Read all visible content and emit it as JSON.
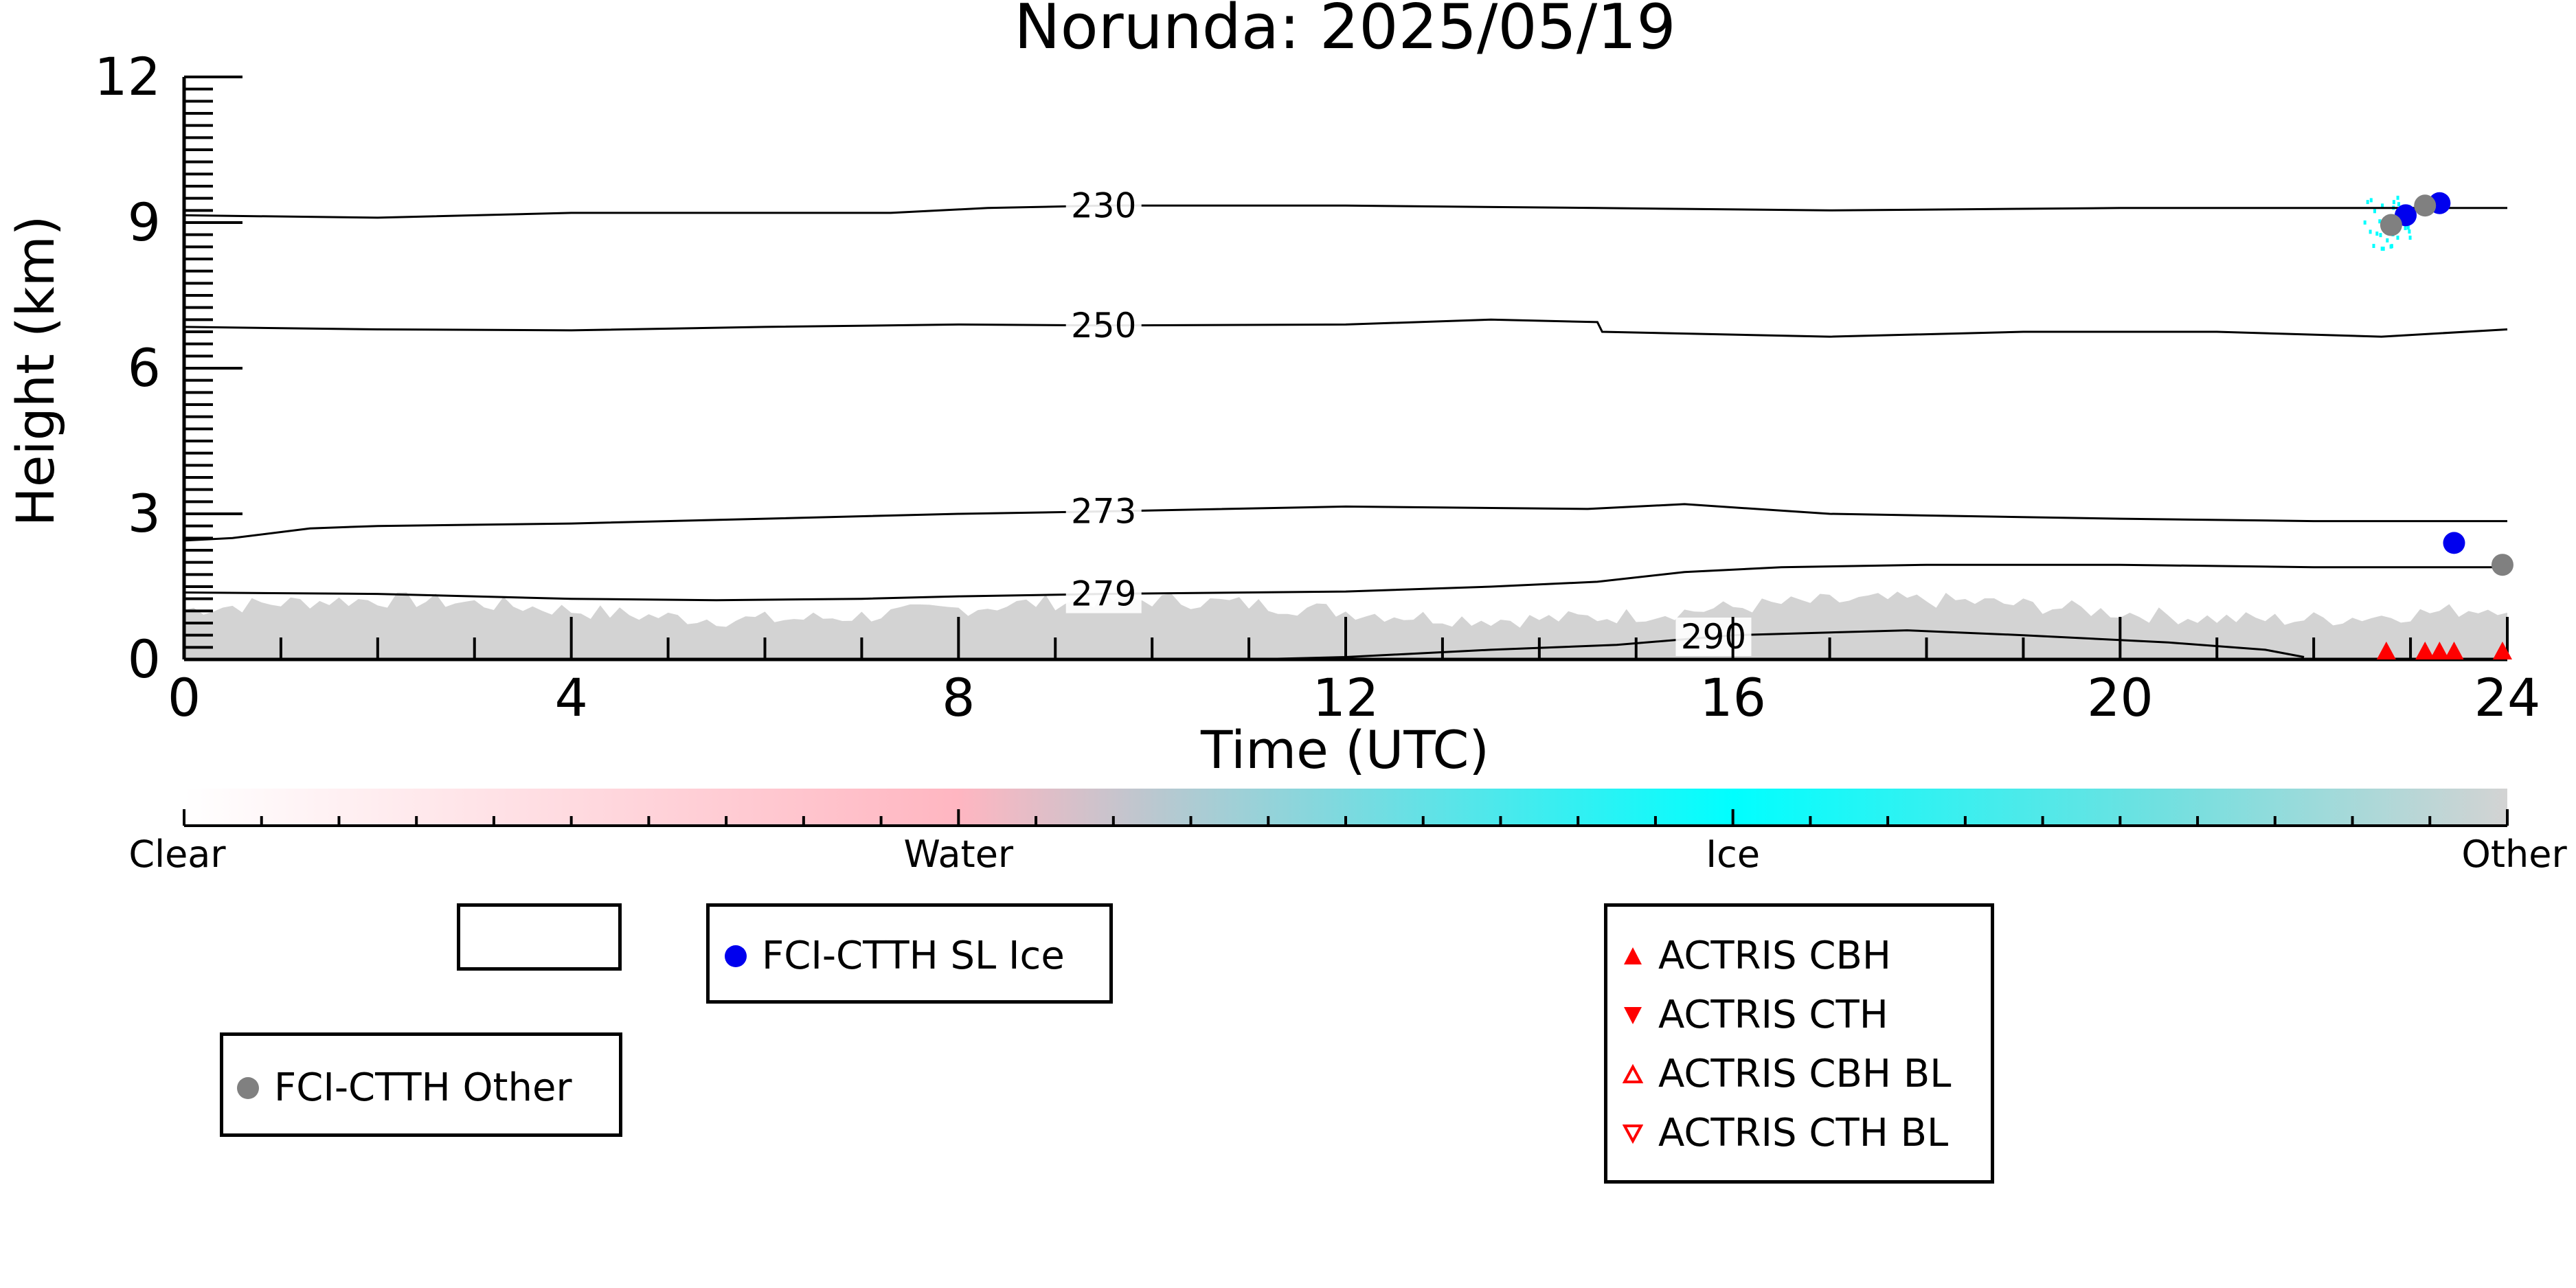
{
  "chart_data": {
    "type": "line",
    "title": "Norunda: 2025/05/19",
    "xlabel": "Time (UTC)",
    "ylabel": "Height (km)",
    "xlim": [
      0,
      24
    ],
    "ylim": [
      0,
      12
    ],
    "xticks": [
      0,
      4,
      8,
      12,
      16,
      20,
      24
    ],
    "yticks": [
      0,
      3,
      6,
      9,
      12
    ],
    "isotherms": [
      {
        "label": "230",
        "label_at": 9.5,
        "points": [
          [
            0,
            9.15
          ],
          [
            2,
            9.1
          ],
          [
            4,
            9.2
          ],
          [
            6,
            9.2
          ],
          [
            7.3,
            9.2
          ],
          [
            8.3,
            9.3
          ],
          [
            9.5,
            9.35
          ],
          [
            12,
            9.35
          ],
          [
            14.6,
            9.3
          ],
          [
            17,
            9.25
          ],
          [
            20,
            9.3
          ],
          [
            22,
            9.3
          ],
          [
            24,
            9.3
          ]
        ]
      },
      {
        "label": "250",
        "label_at": 9.5,
        "points": [
          [
            0,
            6.85
          ],
          [
            2,
            6.8
          ],
          [
            4,
            6.78
          ],
          [
            6,
            6.85
          ],
          [
            8,
            6.9
          ],
          [
            9.5,
            6.88
          ],
          [
            12,
            6.9
          ],
          [
            13.5,
            7.0
          ],
          [
            14.6,
            6.95
          ],
          [
            14.65,
            6.75
          ],
          [
            17,
            6.65
          ],
          [
            19,
            6.75
          ],
          [
            21,
            6.75
          ],
          [
            22.7,
            6.65
          ],
          [
            24,
            6.8
          ]
        ]
      },
      {
        "label": "273",
        "label_at": 9.5,
        "points": [
          [
            0,
            2.45
          ],
          [
            0.5,
            2.5
          ],
          [
            1.3,
            2.7
          ],
          [
            2,
            2.75
          ],
          [
            4,
            2.8
          ],
          [
            6,
            2.9
          ],
          [
            8,
            3.0
          ],
          [
            9.5,
            3.05
          ],
          [
            12,
            3.15
          ],
          [
            14.5,
            3.1
          ],
          [
            15.5,
            3.2
          ],
          [
            17,
            3.0
          ],
          [
            20,
            2.9
          ],
          [
            22,
            2.85
          ],
          [
            24,
            2.85
          ]
        ]
      },
      {
        "label": "279",
        "label_at": 9.5,
        "points": [
          [
            0,
            1.38
          ],
          [
            2,
            1.35
          ],
          [
            4,
            1.25
          ],
          [
            5.5,
            1.22
          ],
          [
            7,
            1.25
          ],
          [
            8,
            1.3
          ],
          [
            9.5,
            1.35
          ],
          [
            12,
            1.4
          ],
          [
            13.5,
            1.5
          ],
          [
            14.6,
            1.6
          ],
          [
            15.5,
            1.8
          ],
          [
            16.5,
            1.9
          ],
          [
            18,
            1.95
          ],
          [
            20,
            1.95
          ],
          [
            22,
            1.9
          ],
          [
            24,
            1.9
          ]
        ]
      },
      {
        "label": "290",
        "label_at": 15.8,
        "points": [
          [
            11,
            0.0
          ],
          [
            12,
            0.05
          ],
          [
            13.5,
            0.2
          ],
          [
            14.8,
            0.3
          ],
          [
            16,
            0.5
          ],
          [
            17.8,
            0.6
          ],
          [
            19,
            0.5
          ],
          [
            20.5,
            0.35
          ],
          [
            21.5,
            0.2
          ],
          [
            21.9,
            0.05
          ]
        ]
      }
    ],
    "classification_field": {
      "description": "low-level grey 'Other' signal",
      "top_km_approx": 1.1
    },
    "ice_speckle": {
      "x_range": [
        22.5,
        23.0
      ],
      "y_range": [
        8.4,
        9.6
      ]
    },
    "series": [
      {
        "name": "FCI-CTTH SL Ice",
        "color": "#0000ee",
        "marker": "circle",
        "points": [
          [
            22.95,
            9.15
          ],
          [
            23.3,
            9.4
          ],
          [
            23.45,
            2.4
          ]
        ]
      },
      {
        "name": "FCI-CTTH Other",
        "color": "#808080",
        "marker": "circle",
        "points": [
          [
            22.8,
            8.95
          ],
          [
            23.15,
            9.35
          ],
          [
            23.95,
            1.95
          ]
        ]
      },
      {
        "name": "ACTRIS CBH",
        "color": "#ff0000",
        "marker": "triangle-up",
        "points": [
          [
            22.75,
            0.0
          ],
          [
            23.15,
            0.0
          ],
          [
            23.3,
            0.0
          ],
          [
            23.45,
            0.0
          ],
          [
            23.95,
            0.0
          ]
        ]
      },
      {
        "name": "ACTRIS CTH",
        "color": "#ff0000",
        "marker": "triangle-down",
        "points": []
      },
      {
        "name": "ACTRIS CBH BL",
        "color": "#ff0000",
        "marker": "triangle-up-open",
        "points": []
      },
      {
        "name": "ACTRIS CTH BL",
        "color": "#ff0000",
        "marker": "triangle-down-open",
        "points": []
      }
    ],
    "colorbar": {
      "labels": [
        "Clear",
        "Water",
        "Ice",
        "Other"
      ],
      "stops": [
        {
          "pos": 0.0,
          "color": "#ffffff"
        },
        {
          "pos": 0.333,
          "color": "#ffb6c1"
        },
        {
          "pos": 0.42,
          "color": "#b8c8d0"
        },
        {
          "pos": 0.667,
          "color": "#00ffff"
        },
        {
          "pos": 0.85,
          "color": "#70e0e0"
        },
        {
          "pos": 1.0,
          "color": "#d3d3d3"
        }
      ]
    },
    "colors": {
      "other": "#d3d3d3",
      "ice": "#00ffff"
    },
    "legend_placement": "below"
  },
  "legend": {
    "empty_box_label": "",
    "sl_ice": "FCI-CTTH SL Ice",
    "other": "FCI-CTTH Other",
    "cbh": "ACTRIS CBH",
    "cth": "ACTRIS CTH",
    "cbh_bl": "ACTRIS CBH BL",
    "cth_bl": "ACTRIS CTH BL"
  }
}
